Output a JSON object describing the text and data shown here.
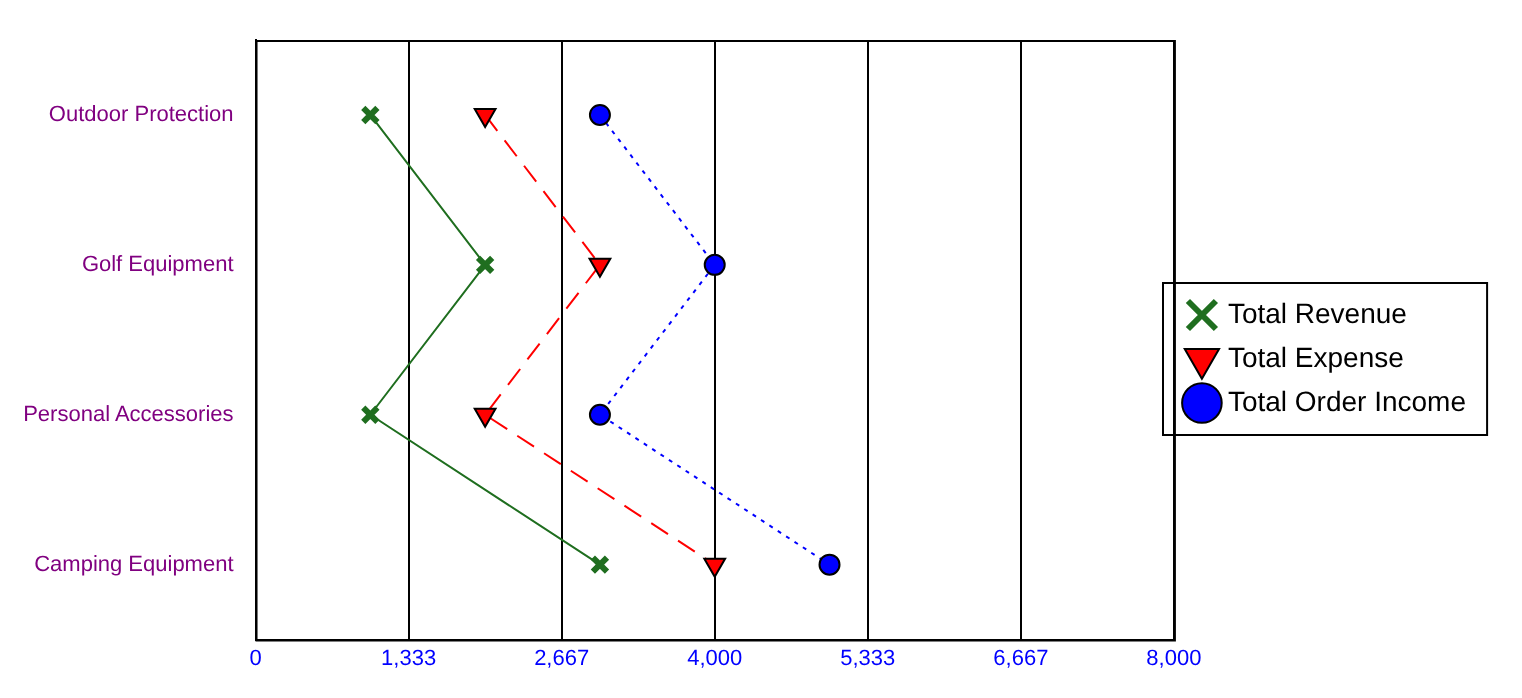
{
  "chart_data": {
    "type": "line",
    "orientation": "horizontal",
    "categories": [
      "Outdoor Protection",
      "Golf Equipment",
      "Personal Accessories",
      "Camping Equipment"
    ],
    "series": [
      {
        "name": "Total Revenue",
        "color": "#1f6e1f",
        "values": [
          1000,
          2000,
          1000,
          3000
        ],
        "marker": "cross",
        "line_style": "solid"
      },
      {
        "name": "Total Expense",
        "color": "#ff0000",
        "values": [
          2000,
          3000,
          2000,
          4000
        ],
        "marker": "triangle",
        "line_style": "dashed"
      },
      {
        "name": "Total Order Income",
        "color": "#0000ff",
        "values": [
          3000,
          4000,
          3000,
          5000
        ],
        "marker": "circle",
        "line_style": "dotted"
      }
    ],
    "xlim": [
      0,
      8000
    ],
    "xticks": [
      0,
      {
        "value": 1333.333,
        "label": "1,333"
      },
      {
        "value": 2666.667,
        "label": "2,667"
      },
      {
        "value": 4000,
        "label": "4,000"
      },
      {
        "value": 5333.333,
        "label": "5,333"
      },
      {
        "value": 6666.667,
        "label": "6,667"
      },
      {
        "value": 8000,
        "label": "8,000"
      }
    ],
    "grid": "x",
    "legend": "right"
  }
}
